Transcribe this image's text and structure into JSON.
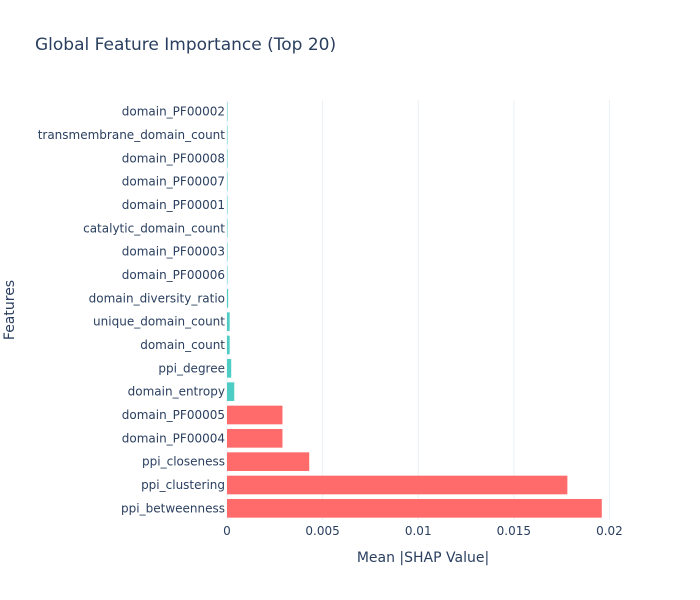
{
  "colors": {
    "background": "#ffffff",
    "text": "#2a3f5f",
    "grid": "#ebf0f8",
    "bar_high": "#ff6b6b",
    "bar_low": "#4ecdc4"
  },
  "chart_data": {
    "type": "bar",
    "orientation": "horizontal",
    "title": "Global Feature Importance (Top 20)",
    "xlabel": "Mean |SHAP Value|",
    "ylabel": "Features",
    "xlim": [
      0,
      0.0205
    ],
    "xticks": [
      0,
      0.005,
      0.01,
      0.015,
      0.02
    ],
    "xtick_labels": [
      "0",
      "0.005",
      "0.01",
      "0.015",
      "0.02"
    ],
    "grid": true,
    "categories": [
      "domain_PF00002",
      "transmembrane_domain_count",
      "domain_PF00008",
      "domain_PF00007",
      "domain_PF00001",
      "catalytic_domain_count",
      "domain_PF00003",
      "domain_PF00006",
      "domain_diversity_ratio",
      "unique_domain_count",
      "domain_count",
      "ppi_degree",
      "domain_entropy",
      "domain_PF00005",
      "domain_PF00004",
      "ppi_closeness",
      "ppi_clustering",
      "ppi_betweenness"
    ],
    "values": [
      1e-05,
      1e-05,
      1e-05,
      1e-05,
      1e-05,
      1e-05,
      1e-05,
      1e-05,
      6e-05,
      0.00014,
      0.00014,
      0.00022,
      0.00038,
      0.0029,
      0.0029,
      0.0043,
      0.0178,
      0.0196
    ],
    "bar_colors": [
      "#4ecdc4",
      "#4ecdc4",
      "#4ecdc4",
      "#4ecdc4",
      "#4ecdc4",
      "#4ecdc4",
      "#4ecdc4",
      "#4ecdc4",
      "#4ecdc4",
      "#4ecdc4",
      "#4ecdc4",
      "#4ecdc4",
      "#4ecdc4",
      "#ff6b6b",
      "#ff6b6b",
      "#ff6b6b",
      "#ff6b6b",
      "#ff6b6b"
    ]
  }
}
